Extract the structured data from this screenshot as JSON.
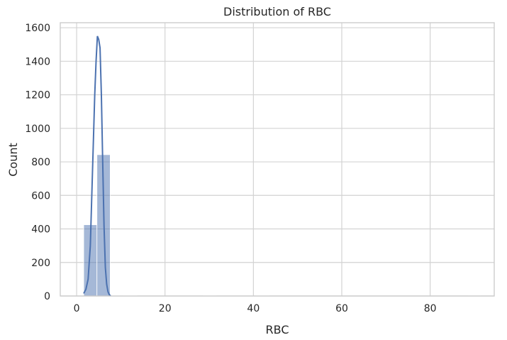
{
  "chart_data": {
    "type": "bar",
    "subtype": "histogram_with_kde",
    "title": "Distribution of RBC",
    "xlabel": "RBC",
    "ylabel": "Count",
    "xlim": [
      -3.7,
      94.5
    ],
    "ylim": [
      0,
      1630
    ],
    "xticks": [
      0,
      20,
      40,
      60,
      80
    ],
    "yticks": [
      0,
      200,
      400,
      600,
      800,
      1000,
      1200,
      1400,
      1600
    ],
    "grid": true,
    "legend": "none",
    "color": "#4c72b0",
    "bins": [
      {
        "x0": 1.6,
        "x1": 4.6,
        "count": 425
      },
      {
        "x0": 4.6,
        "x1": 7.6,
        "count": 843
      },
      {
        "x0": 7.6,
        "x1": 10.6,
        "count": 4
      },
      {
        "x0": 10.6,
        "x1": 13.6,
        "count": 3
      },
      {
        "x0": 13.6,
        "x1": 16.6,
        "count": 0
      },
      {
        "x0": 16.6,
        "x1": 19.6,
        "count": 0
      },
      {
        "x0": 19.6,
        "x1": 22.6,
        "count": 0
      },
      {
        "x0": 22.6,
        "x1": 25.6,
        "count": 0
      },
      {
        "x0": 25.6,
        "x1": 28.6,
        "count": 0
      },
      {
        "x0": 28.6,
        "x1": 31.6,
        "count": 2
      },
      {
        "x0": 31.6,
        "x1": 34.6,
        "count": 0
      },
      {
        "x0": 34.6,
        "x1": 37.6,
        "count": 0
      },
      {
        "x0": 37.6,
        "x1": 40.6,
        "count": 0
      },
      {
        "x0": 40.6,
        "x1": 43.6,
        "count": 2
      },
      {
        "x0": 43.6,
        "x1": 46.6,
        "count": 0
      },
      {
        "x0": 46.6,
        "x1": 49.6,
        "count": 0
      },
      {
        "x0": 49.6,
        "x1": 52.6,
        "count": 0
      },
      {
        "x0": 52.6,
        "x1": 55.6,
        "count": 0
      },
      {
        "x0": 55.6,
        "x1": 58.6,
        "count": 0
      },
      {
        "x0": 58.6,
        "x1": 61.6,
        "count": 0
      },
      {
        "x0": 61.6,
        "x1": 64.6,
        "count": 0
      },
      {
        "x0": 64.6,
        "x1": 67.6,
        "count": 0
      },
      {
        "x0": 67.6,
        "x1": 70.6,
        "count": 0
      },
      {
        "x0": 70.6,
        "x1": 73.6,
        "count": 0
      },
      {
        "x0": 73.6,
        "x1": 76.6,
        "count": 0
      },
      {
        "x0": 76.6,
        "x1": 79.6,
        "count": 0
      },
      {
        "x0": 79.6,
        "x1": 82.6,
        "count": 0
      },
      {
        "x0": 82.6,
        "x1": 85.6,
        "count": 0
      },
      {
        "x0": 85.6,
        "x1": 88.6,
        "count": 0
      },
      {
        "x0": 88.6,
        "x1": 91.6,
        "count": 1
      }
    ],
    "kde": {
      "x": [
        1.6,
        2.1,
        2.6,
        3.1,
        3.6,
        4.1,
        4.4,
        4.7,
        5.0,
        5.3,
        5.6,
        5.9,
        6.2,
        6.5,
        6.8,
        7.1,
        7.4,
        7.7
      ],
      "y": [
        15,
        40,
        100,
        300,
        750,
        1200,
        1400,
        1550,
        1530,
        1480,
        1200,
        800,
        420,
        170,
        70,
        25,
        8,
        0
      ]
    }
  }
}
